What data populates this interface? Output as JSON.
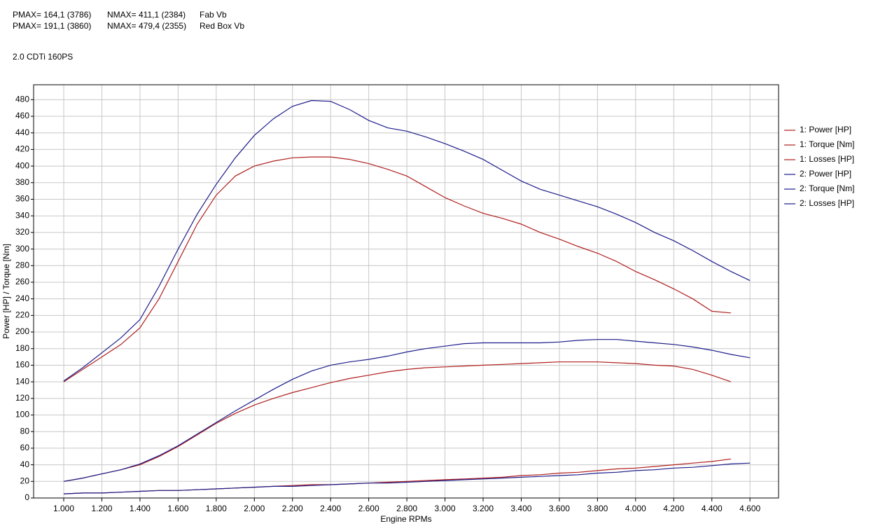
{
  "chart_data": {
    "type": "line",
    "header": [
      [
        "PMAX= 164,1 (3786)",
        "NMAX= 411,1 (2384)",
        "Fab Vb"
      ],
      [
        "PMAX= 191,1 (3860)",
        "NMAX= 479,4 (2355)",
        "Red Box Vb"
      ]
    ],
    "subtitle": "2.0 CDTi 160PS",
    "x_label": "Engine RPMs",
    "y_label": "Power [HP] / Torque [Nm]",
    "x": [
      1000,
      1100,
      1200,
      1300,
      1400,
      1500,
      1600,
      1700,
      1800,
      1900,
      2000,
      2100,
      2200,
      2300,
      2400,
      2500,
      2600,
      2700,
      2800,
      2900,
      3000,
      3100,
      3200,
      3300,
      3400,
      3500,
      3600,
      3700,
      3800,
      3900,
      4000,
      4100,
      4200,
      4300,
      4400,
      4500,
      4600
    ],
    "series": [
      {
        "name": "1: Power [HP]",
        "color": "#b01e1e",
        "values": [
          20,
          24,
          29,
          34,
          40,
          50,
          62,
          76,
          90,
          102,
          112,
          120,
          127,
          133,
          139,
          144,
          148,
          152,
          155,
          157,
          158,
          159,
          160,
          161,
          162,
          163,
          164,
          164,
          164,
          163,
          162,
          160,
          159,
          155,
          148,
          140,
          null
        ]
      },
      {
        "name": "1: Torque [Nm]",
        "color": "#b01e1e",
        "values": [
          140,
          155,
          170,
          185,
          205,
          240,
          285,
          330,
          365,
          388,
          400,
          406,
          410,
          411,
          411,
          408,
          403,
          396,
          388,
          375,
          362,
          352,
          343,
          337,
          330,
          320,
          312,
          303,
          295,
          285,
          273,
          263,
          252,
          240,
          225,
          223,
          null
        ]
      },
      {
        "name": "1: Losses [HP]",
        "color": "#b01e1e",
        "values": [
          5,
          6,
          6,
          7,
          8,
          9,
          9,
          10,
          11,
          12,
          13,
          14,
          15,
          16,
          16,
          17,
          18,
          19,
          20,
          21,
          22,
          23,
          24,
          25,
          27,
          28,
          30,
          31,
          33,
          35,
          36,
          38,
          40,
          42,
          44,
          47,
          null
        ]
      },
      {
        "name": "2: Power [HP]",
        "color": "#1c1c8a",
        "values": [
          20,
          24,
          29,
          34,
          41,
          51,
          63,
          77,
          91,
          105,
          118,
          131,
          143,
          153,
          160,
          164,
          167,
          171,
          176,
          180,
          183,
          186,
          187,
          187,
          187,
          187,
          188,
          190,
          191,
          191,
          189,
          187,
          185,
          182,
          178,
          173,
          169
        ]
      },
      {
        "name": "2: Torque [Nm]",
        "color": "#1c1c8a",
        "values": [
          141,
          157,
          175,
          193,
          215,
          255,
          300,
          342,
          378,
          410,
          437,
          457,
          472,
          479,
          478,
          468,
          455,
          446,
          442,
          435,
          427,
          418,
          408,
          395,
          382,
          372,
          365,
          358,
          351,
          342,
          332,
          320,
          310,
          298,
          285,
          273,
          262
        ]
      },
      {
        "name": "2: Losses [HP]",
        "color": "#1c1c8a",
        "values": [
          5,
          6,
          6,
          7,
          8,
          9,
          9,
          10,
          11,
          12,
          13,
          14,
          14,
          15,
          16,
          17,
          18,
          18,
          19,
          20,
          21,
          22,
          23,
          24,
          25,
          26,
          27,
          28,
          30,
          31,
          33,
          34,
          36,
          37,
          39,
          41,
          42
        ]
      }
    ],
    "xlim": [
      842,
      4750
    ],
    "ylim": [
      0,
      498
    ],
    "xticks": [
      {
        "value": 1000,
        "label": "1.000"
      },
      {
        "value": 1200,
        "label": "1.200"
      },
      {
        "value": 1400,
        "label": "1.400"
      },
      {
        "value": 1600,
        "label": "1.600"
      },
      {
        "value": 1800,
        "label": "1.800"
      },
      {
        "value": 2000,
        "label": "2.000"
      },
      {
        "value": 2200,
        "label": "2.200"
      },
      {
        "value": 2400,
        "label": "2.400"
      },
      {
        "value": 2600,
        "label": "2.600"
      },
      {
        "value": 2800,
        "label": "2.800"
      },
      {
        "value": 3000,
        "label": "3.000"
      },
      {
        "value": 3200,
        "label": "3.200"
      },
      {
        "value": 3400,
        "label": "3.400"
      },
      {
        "value": 3600,
        "label": "3.600"
      },
      {
        "value": 3800,
        "label": "3.800"
      },
      {
        "value": 4000,
        "label": "4.000"
      },
      {
        "value": 4200,
        "label": "4.200"
      },
      {
        "value": 4400,
        "label": "4.400"
      },
      {
        "value": 4600,
        "label": "4.600"
      }
    ],
    "yticks": [
      0,
      20,
      40,
      60,
      80,
      100,
      120,
      140,
      160,
      180,
      200,
      220,
      240,
      260,
      280,
      300,
      320,
      340,
      360,
      380,
      400,
      420,
      440,
      460,
      480
    ],
    "grid": true
  }
}
